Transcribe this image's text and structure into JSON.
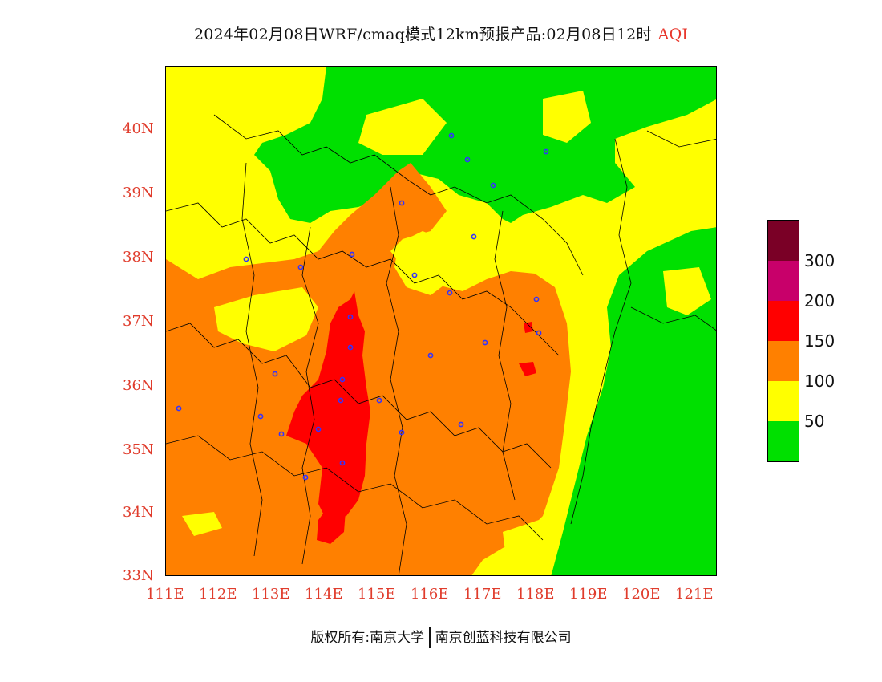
{
  "title": {
    "main": "2024年02月08日WRF/cmaq模式12km预报产品:02月08日12时",
    "product": "AQI"
  },
  "map": {
    "lat_ticks": [
      "40N",
      "39N",
      "38N",
      "37N",
      "36N",
      "35N",
      "34N",
      "33N"
    ],
    "lon_ticks": [
      "111E",
      "112E",
      "113E",
      "114E",
      "115E",
      "116E",
      "117E",
      "118E",
      "119E",
      "120E",
      "121E"
    ],
    "lat_range": [
      33,
      41
    ],
    "lon_range": [
      111,
      121.4
    ]
  },
  "legend": {
    "colors": [
      "#7a0026",
      "#c8006a",
      "#ff0000",
      "#ff8000",
      "#ffff00",
      "#00e000"
    ],
    "labels": [
      "300",
      "200",
      "150",
      "100",
      "50"
    ]
  },
  "footer": {
    "left": "版权所有:南京大学",
    "right": "南京创蓝科技有限公司"
  }
}
